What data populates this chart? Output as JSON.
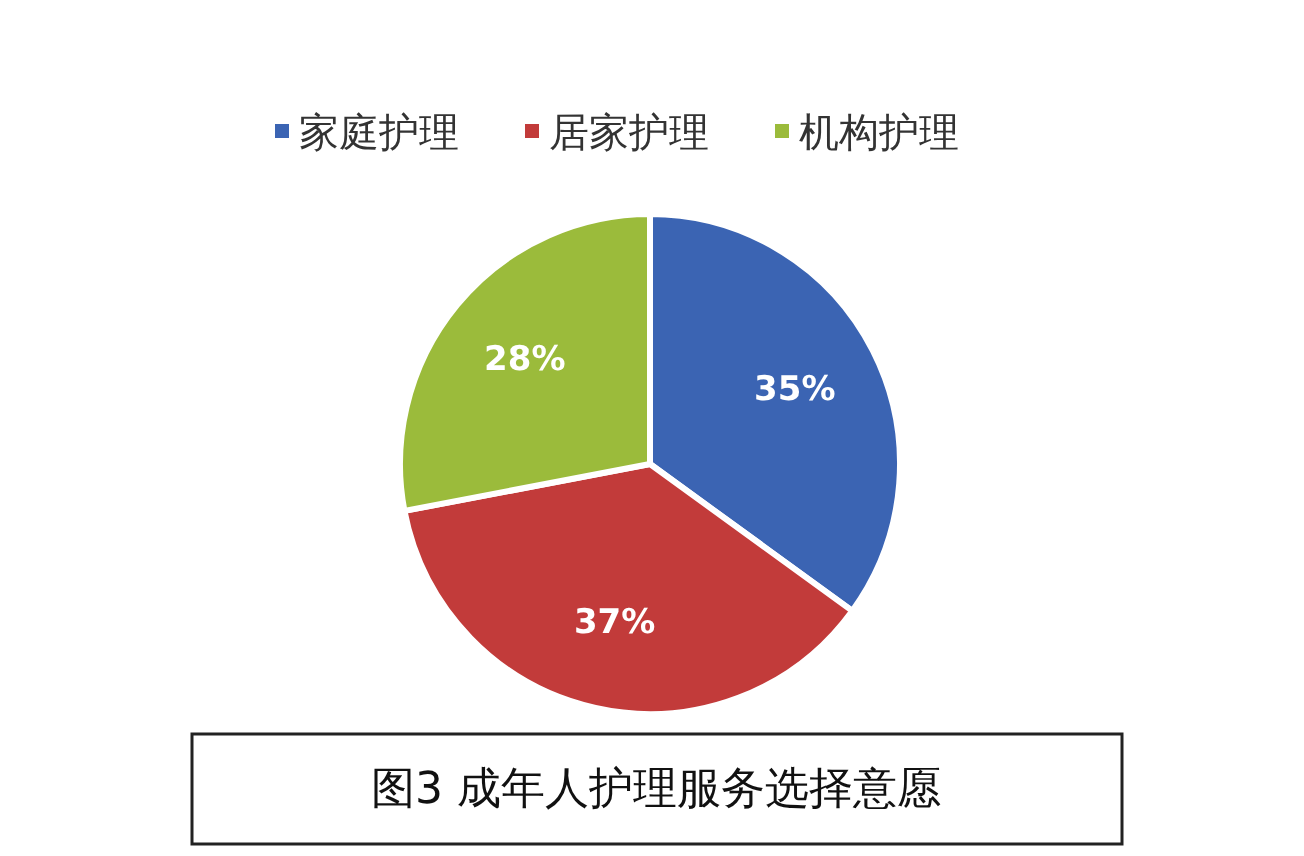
{
  "chart_data": {
    "type": "pie",
    "title": "图3 成年人护理服务选择意愿",
    "categories": [
      "家庭护理",
      "居家护理",
      "机构护理"
    ],
    "values": [
      35,
      37,
      28
    ],
    "colors": [
      "#3b64b3",
      "#c23b3a",
      "#9bbb3b"
    ],
    "value_labels": [
      "35%",
      "37%",
      "28%"
    ],
    "legend": "top"
  }
}
